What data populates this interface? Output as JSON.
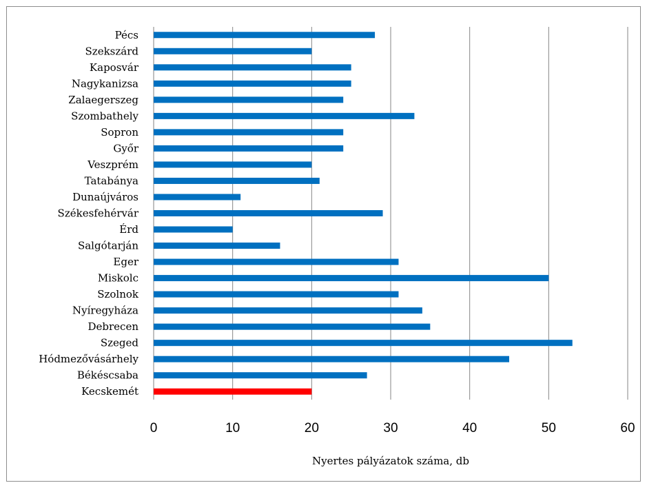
{
  "chart_data": {
    "type": "bar",
    "orientation": "horizontal",
    "title": "",
    "xlabel": "Nyertes pályázatok száma, db",
    "ylabel": "",
    "xlim": [
      0,
      60
    ],
    "xticks": [
      "0",
      "10",
      "20",
      "30",
      "40",
      "50",
      "60"
    ],
    "grid": "vertical",
    "legend": "none",
    "default_color": "#0070c0",
    "highlight_color": "#ff0000",
    "categories": [
      "Pécs",
      "Szekszárd",
      "Kaposvár",
      "Nagykanizsa",
      "Zalaegerszeg",
      "Szombathely",
      "Sopron",
      "Győr",
      "Veszprém",
      "Tatabánya",
      "Dunaújváros",
      "Székesfehérvár",
      "Érd",
      "Salgótarján",
      "Eger",
      "Miskolc",
      "Szolnok",
      "Nyíregyháza",
      "Debrecen",
      "Szeged",
      "Hódmezővásárhely",
      "Békéscsaba",
      "Kecskemét"
    ],
    "values": [
      28,
      20,
      25,
      25,
      24,
      33,
      24,
      24,
      20,
      21,
      11,
      29,
      10,
      16,
      31,
      50,
      31,
      34,
      35,
      53,
      45,
      27,
      20
    ],
    "highlighted": [
      "Kecskemét"
    ]
  }
}
